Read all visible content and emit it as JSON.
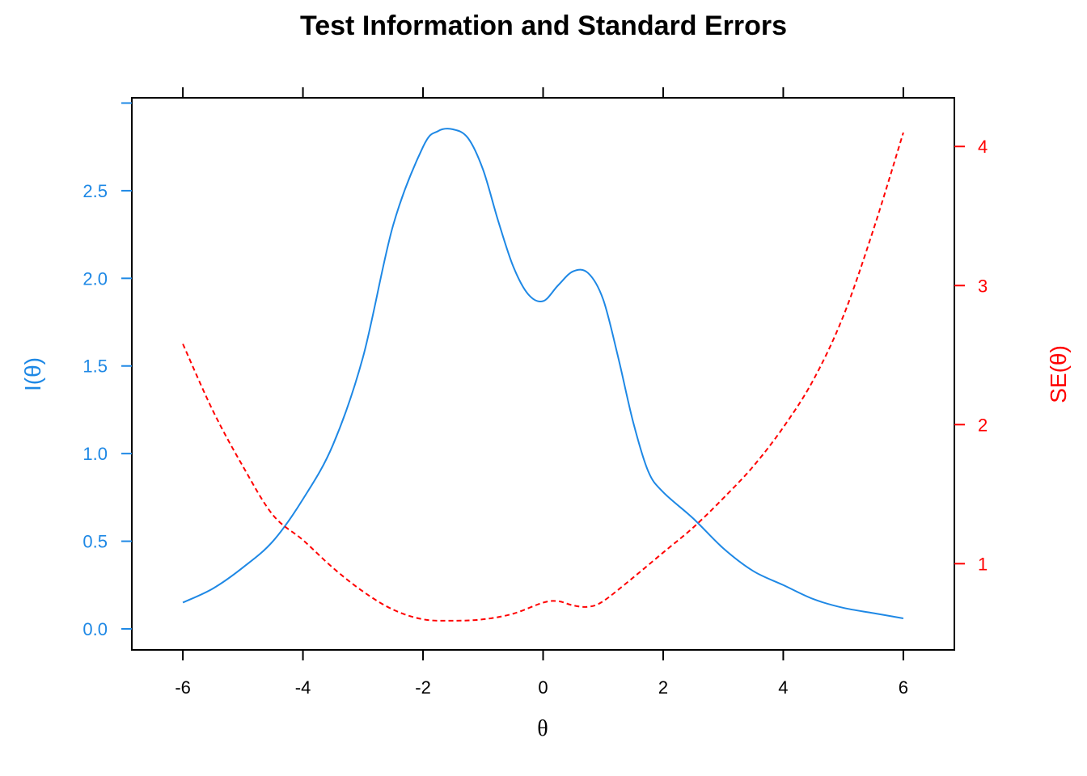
{
  "chart_data": {
    "type": "line",
    "title": "Test Information and Standard Errors",
    "xlabel": "θ",
    "ylabel_left": "I(θ)",
    "ylabel_right": "SE(θ)",
    "x_ticks": [
      "-6",
      "-4",
      "-2",
      "0",
      "2",
      "4",
      "6"
    ],
    "y_left_ticks": [
      "0.0",
      "0.5",
      "1.0",
      "1.5",
      "2.0",
      "2.5"
    ],
    "y_right_ticks": [
      "1",
      "2",
      "3",
      "4"
    ],
    "xlim": [
      -6.85,
      6.85
    ],
    "ylim_left": [
      -0.12,
      3.03
    ],
    "ylim_right": [
      0.38,
      4.35
    ],
    "grid": false,
    "colors": {
      "information": "#1E88E5",
      "se": "#FF0000",
      "axis": "#000000"
    },
    "series": [
      {
        "axis": "left",
        "style": "solid",
        "x": [
          -6,
          -5.5,
          -5,
          -4.5,
          -4,
          -3.5,
          -3,
          -2.5,
          -2,
          -1.75,
          -1.5,
          -1.25,
          -1,
          -0.75,
          -0.5,
          -0.25,
          0,
          0.25,
          0.5,
          0.75,
          1,
          1.25,
          1.5,
          1.75,
          2,
          2.5,
          3,
          3.5,
          4,
          4.5,
          5,
          5.5,
          6
        ],
        "y": [
          0.15,
          0.23,
          0.35,
          0.5,
          0.74,
          1.05,
          1.55,
          2.3,
          2.75,
          2.84,
          2.85,
          2.8,
          2.62,
          2.33,
          2.07,
          1.91,
          1.87,
          1.96,
          2.04,
          2.03,
          1.88,
          1.55,
          1.18,
          0.9,
          0.78,
          0.63,
          0.46,
          0.33,
          0.25,
          0.17,
          0.12,
          0.09,
          0.06
        ]
      },
      {
        "axis": "right",
        "style": "dashed",
        "x": [
          -6,
          -5.5,
          -5,
          -4.5,
          -4,
          -3.5,
          -3,
          -2.5,
          -2,
          -1.5,
          -1,
          -0.5,
          0,
          0.25,
          0.5,
          0.75,
          1,
          1.5,
          2,
          2.5,
          3,
          3.5,
          4,
          4.5,
          5,
          5.5,
          6
        ],
        "y": [
          2.58,
          2.1,
          1.7,
          1.35,
          1.17,
          0.97,
          0.8,
          0.67,
          0.6,
          0.59,
          0.6,
          0.64,
          0.72,
          0.73,
          0.7,
          0.69,
          0.73,
          0.9,
          1.08,
          1.26,
          1.47,
          1.7,
          1.98,
          2.32,
          2.78,
          3.4,
          4.1
        ]
      }
    ]
  }
}
